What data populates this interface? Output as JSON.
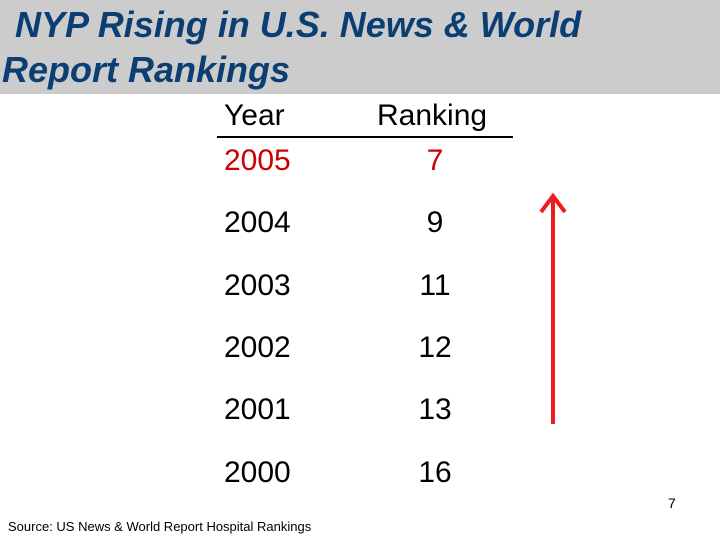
{
  "slide": {
    "title_line1": "NYP Rising in U.S. News & World",
    "title_line2": "Report Rankings",
    "headers": {
      "year": "Year",
      "ranking": "Ranking"
    },
    "rows": [
      {
        "year": "2005",
        "rank": "7"
      },
      {
        "year": "2004",
        "rank": "9"
      },
      {
        "year": "2003",
        "rank": "11"
      },
      {
        "year": "2002",
        "rank": "12"
      },
      {
        "year": "2001",
        "rank": "13"
      },
      {
        "year": "2000",
        "rank": "16"
      }
    ],
    "page_number": "7",
    "source": "Source:  US News & World Report Hospital Rankings"
  },
  "colors": {
    "title_bar": "#cccccc",
    "title_text": "#0b3f73",
    "highlight": "#cc0000",
    "arrow": "#ee1c1c"
  },
  "icons": {
    "trend_arrow": "up-arrow-icon"
  }
}
